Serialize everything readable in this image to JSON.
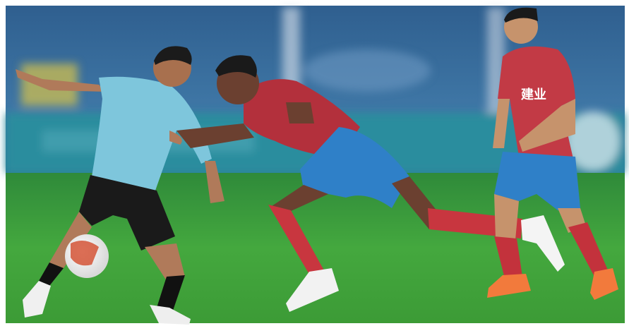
{
  "image": {
    "jersey_text": "建业"
  }
}
